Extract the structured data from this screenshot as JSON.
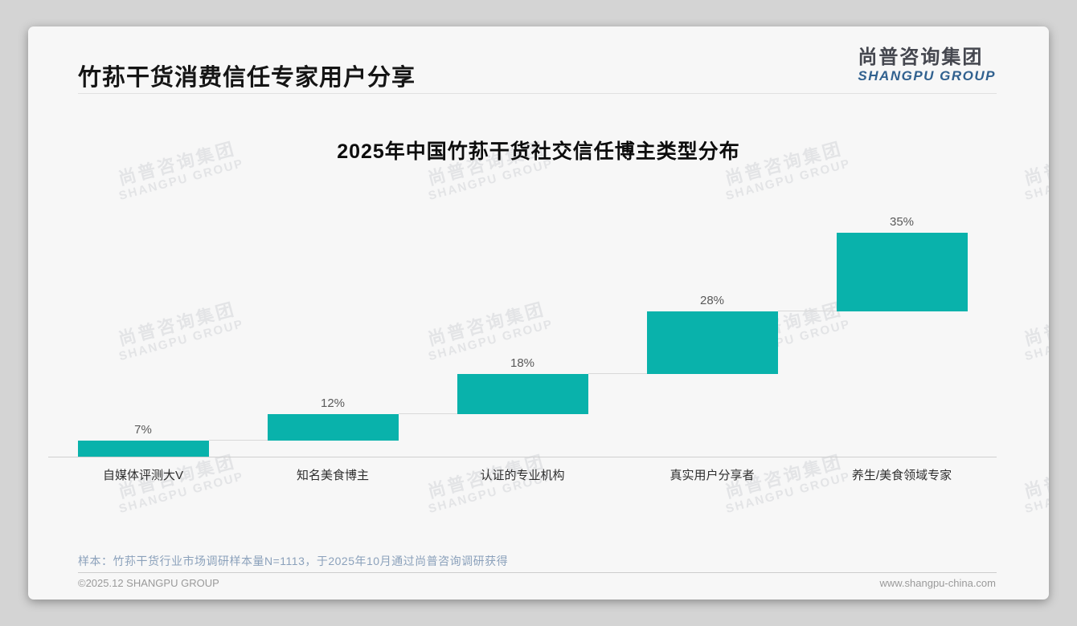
{
  "page": {
    "header": {
      "title": "竹荪干货消费信任专家用户分享"
    },
    "logo": {
      "cn": "尚普咨询集团",
      "en": "SHANGPU GROUP"
    },
    "watermark": {
      "cn": "尚普咨询集团",
      "en": "SHANGPU GROUP"
    },
    "note": "样本：竹荪干货行业市场调研样本量N=1113，于2025年10月通过尚普咨询调研获得",
    "footer": {
      "left": "©2025.12 SHANGPU GROUP",
      "right": "www.shangpu-china.com"
    }
  },
  "chart_data": {
    "type": "bar",
    "subtype": "waterfall",
    "title": "2025年中国竹荪干货社交信任博主类型分布",
    "categories": [
      "自媒体评测大V",
      "知名美食博主",
      "认证的专业机构",
      "真实用户分享者",
      "养生/美食领域专家"
    ],
    "values": [
      7,
      12,
      18,
      28,
      35
    ],
    "value_labels": [
      "7%",
      "12%",
      "18%",
      "28%",
      "35%"
    ],
    "cumulative": [
      7,
      19,
      37,
      65,
      100
    ],
    "ylim": [
      0,
      100
    ],
    "xlabel": "",
    "ylabel": "",
    "grid": false,
    "legend": "none",
    "bar_color": "#09b2ab",
    "connector_color": "#d9d9d9",
    "baseline_color": "#cfcfcf",
    "value_label_color": "#595959"
  }
}
